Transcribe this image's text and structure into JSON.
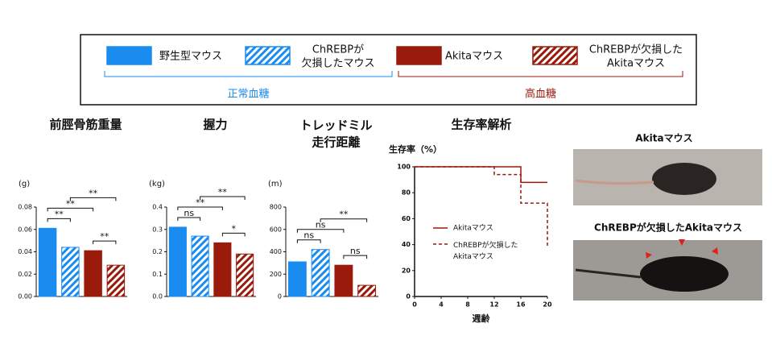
{
  "legend": {
    "items": [
      {
        "label": "野生型マウス",
        "color": "#1a8cf0",
        "hatched": false
      },
      {
        "label": "ChREBPが\n欠損したマウス",
        "color": "#1a8cf0",
        "hatched": true
      },
      {
        "label": "Akitaマウス",
        "color": "#9a1a0c",
        "hatched": false
      },
      {
        "label": "ChREBPが欠損した\nAkitaマウス",
        "color": "#9a1a0c",
        "hatched": true
      }
    ],
    "groups": [
      {
        "label": "正常血糖",
        "color": "#1a8cf0"
      },
      {
        "label": "高血糖",
        "color": "#9a1a0c"
      }
    ]
  },
  "chart_data": [
    {
      "type": "bar",
      "title": "前脛骨筋重量",
      "unit": "(g)",
      "values": [
        0.061,
        0.044,
        0.041,
        0.028
      ],
      "colors": [
        "#1a8cf0",
        "#1a8cf0",
        "#9a1a0c",
        "#9a1a0c"
      ],
      "hatched": [
        false,
        true,
        false,
        true
      ],
      "ylim": [
        0,
        0.08
      ],
      "yticks": [
        {
          "value": 0,
          "label": "0.00"
        },
        {
          "value": 0.02,
          "label": "0.02"
        },
        {
          "value": 0.04,
          "label": "0.04"
        },
        {
          "value": 0.06,
          "label": "0.06"
        },
        {
          "value": 0.08,
          "label": "0.08"
        }
      ],
      "comparisons": [
        {
          "pair": [
            0,
            1
          ],
          "label": "**"
        },
        {
          "pair": [
            2,
            3
          ],
          "label": "**"
        },
        {
          "pair": [
            0,
            2
          ],
          "label": "**"
        },
        {
          "pair": [
            1,
            3
          ],
          "label": "**"
        }
      ]
    },
    {
      "type": "bar",
      "title": "握力",
      "unit": "(kg)",
      "values": [
        0.31,
        0.27,
        0.24,
        0.19
      ],
      "colors": [
        "#1a8cf0",
        "#1a8cf0",
        "#9a1a0c",
        "#9a1a0c"
      ],
      "hatched": [
        false,
        true,
        false,
        true
      ],
      "ylim": [
        0,
        0.4
      ],
      "yticks": [
        {
          "value": 0,
          "label": "0.0"
        },
        {
          "value": 0.1,
          "label": "0.1"
        },
        {
          "value": 0.2,
          "label": "0.2"
        },
        {
          "value": 0.3,
          "label": "0.3"
        },
        {
          "value": 0.4,
          "label": "0.4"
        }
      ],
      "comparisons": [
        {
          "pair": [
            0,
            1
          ],
          "label": "ns"
        },
        {
          "pair": [
            2,
            3
          ],
          "label": "*"
        },
        {
          "pair": [
            0,
            2
          ],
          "label": "**"
        },
        {
          "pair": [
            1,
            3
          ],
          "label": "**"
        }
      ]
    },
    {
      "type": "bar",
      "title": "トレッドミル\n走行距離",
      "unit": "(m)",
      "values": [
        310,
        420,
        280,
        100
      ],
      "colors": [
        "#1a8cf0",
        "#1a8cf0",
        "#9a1a0c",
        "#9a1a0c"
      ],
      "hatched": [
        false,
        true,
        false,
        true
      ],
      "ylim": [
        0,
        800
      ],
      "yticks": [
        0,
        200,
        400,
        600,
        800
      ],
      "comparisons": [
        {
          "pair": [
            0,
            1
          ],
          "label": "ns"
        },
        {
          "pair": [
            2,
            3
          ],
          "label": "ns"
        },
        {
          "pair": [
            0,
            2
          ],
          "label": "ns"
        },
        {
          "pair": [
            1,
            3
          ],
          "label": "**"
        }
      ]
    },
    {
      "type": "line",
      "title": "生存率解析",
      "ylabel": "生存率（%）",
      "xlabel": "週齢",
      "xlim": [
        0,
        20
      ],
      "xticks": [
        0,
        4,
        8,
        12,
        16,
        20
      ],
      "ylim": [
        0,
        100
      ],
      "yticks": [
        0,
        20,
        40,
        60,
        80,
        100
      ],
      "series": [
        {
          "name": "Akitaマウス",
          "color": "#9a1a0c",
          "dashed": false,
          "x": [
            0,
            16,
            16,
            20
          ],
          "values": [
            100,
            100,
            88,
            88
          ]
        },
        {
          "name": "ChREBPが欠損した\nAkitaマウス",
          "color": "#9a1a0c",
          "dashed": true,
          "x": [
            0,
            12,
            12,
            16,
            16,
            20,
            20
          ],
          "values": [
            100,
            100,
            94,
            94,
            72,
            72,
            38
          ]
        }
      ]
    }
  ],
  "photos": [
    {
      "title": "Akitaマウス"
    },
    {
      "title": "ChREBPが欠損したAkitaマウス"
    }
  ]
}
